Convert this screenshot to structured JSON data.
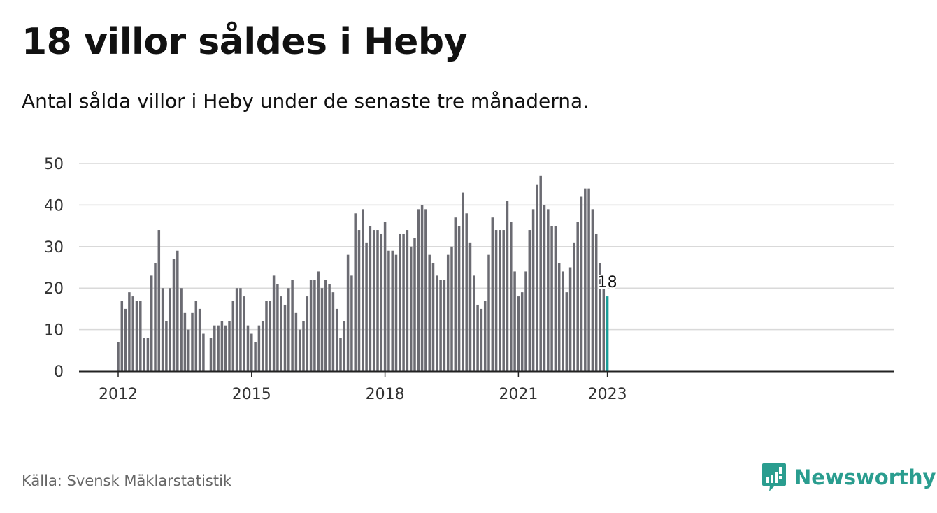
{
  "header": {
    "title": "18 villor såldes i Heby",
    "subtitle": "Antal sålda villor i Heby under de senaste tre månaderna."
  },
  "footer": {
    "source": "Källa: Svensk Mäklarstatistik",
    "brand": "Newsworthy",
    "brand_icon": "newsworthy-logo-icon"
  },
  "colors": {
    "bar": "#6b6b72",
    "highlight": "#1a9e99",
    "grid": "#d9d9d9",
    "axis": "#222222",
    "brand": "#2a9d8f"
  },
  "chart_data": {
    "type": "bar",
    "title": "18 villor såldes i Heby",
    "subtitle": "Antal sålda villor i Heby under de senaste tre månaderna.",
    "xlabel": "",
    "ylabel": "",
    "ylim": [
      0,
      50
    ],
    "yticks": [
      0,
      10,
      20,
      30,
      40,
      50
    ],
    "xticks": [
      "2012",
      "2015",
      "2018",
      "2021",
      "2023"
    ],
    "grid": true,
    "legend": "none",
    "x_start": "2012-01",
    "x_end": "2023-01",
    "highlight_label": "18",
    "values": [
      7,
      17,
      15,
      19,
      18,
      17,
      17,
      8,
      8,
      23,
      26,
      34,
      20,
      12,
      20,
      27,
      29,
      20,
      14,
      10,
      14,
      17,
      15,
      9,
      null,
      8,
      11,
      11,
      12,
      11,
      12,
      17,
      20,
      20,
      18,
      11,
      9,
      7,
      11,
      12,
      17,
      17,
      23,
      21,
      18,
      16,
      20,
      22,
      14,
      10,
      12,
      18,
      22,
      22,
      24,
      20,
      22,
      21,
      19,
      15,
      8,
      12,
      28,
      23,
      38,
      34,
      39,
      31,
      35,
      34,
      34,
      33,
      36,
      29,
      29,
      28,
      33,
      33,
      34,
      30,
      32,
      39,
      40,
      39,
      28,
      26,
      23,
      22,
      22,
      28,
      30,
      37,
      35,
      43,
      38,
      31,
      23,
      16,
      15,
      17,
      28,
      37,
      34,
      34,
      34,
      41,
      36,
      24,
      18,
      19,
      24,
      34,
      39,
      45,
      47,
      40,
      39,
      35,
      35,
      26,
      24,
      19,
      25,
      31,
      36,
      42,
      44,
      44,
      39,
      33,
      26,
      20,
      18
    ]
  }
}
